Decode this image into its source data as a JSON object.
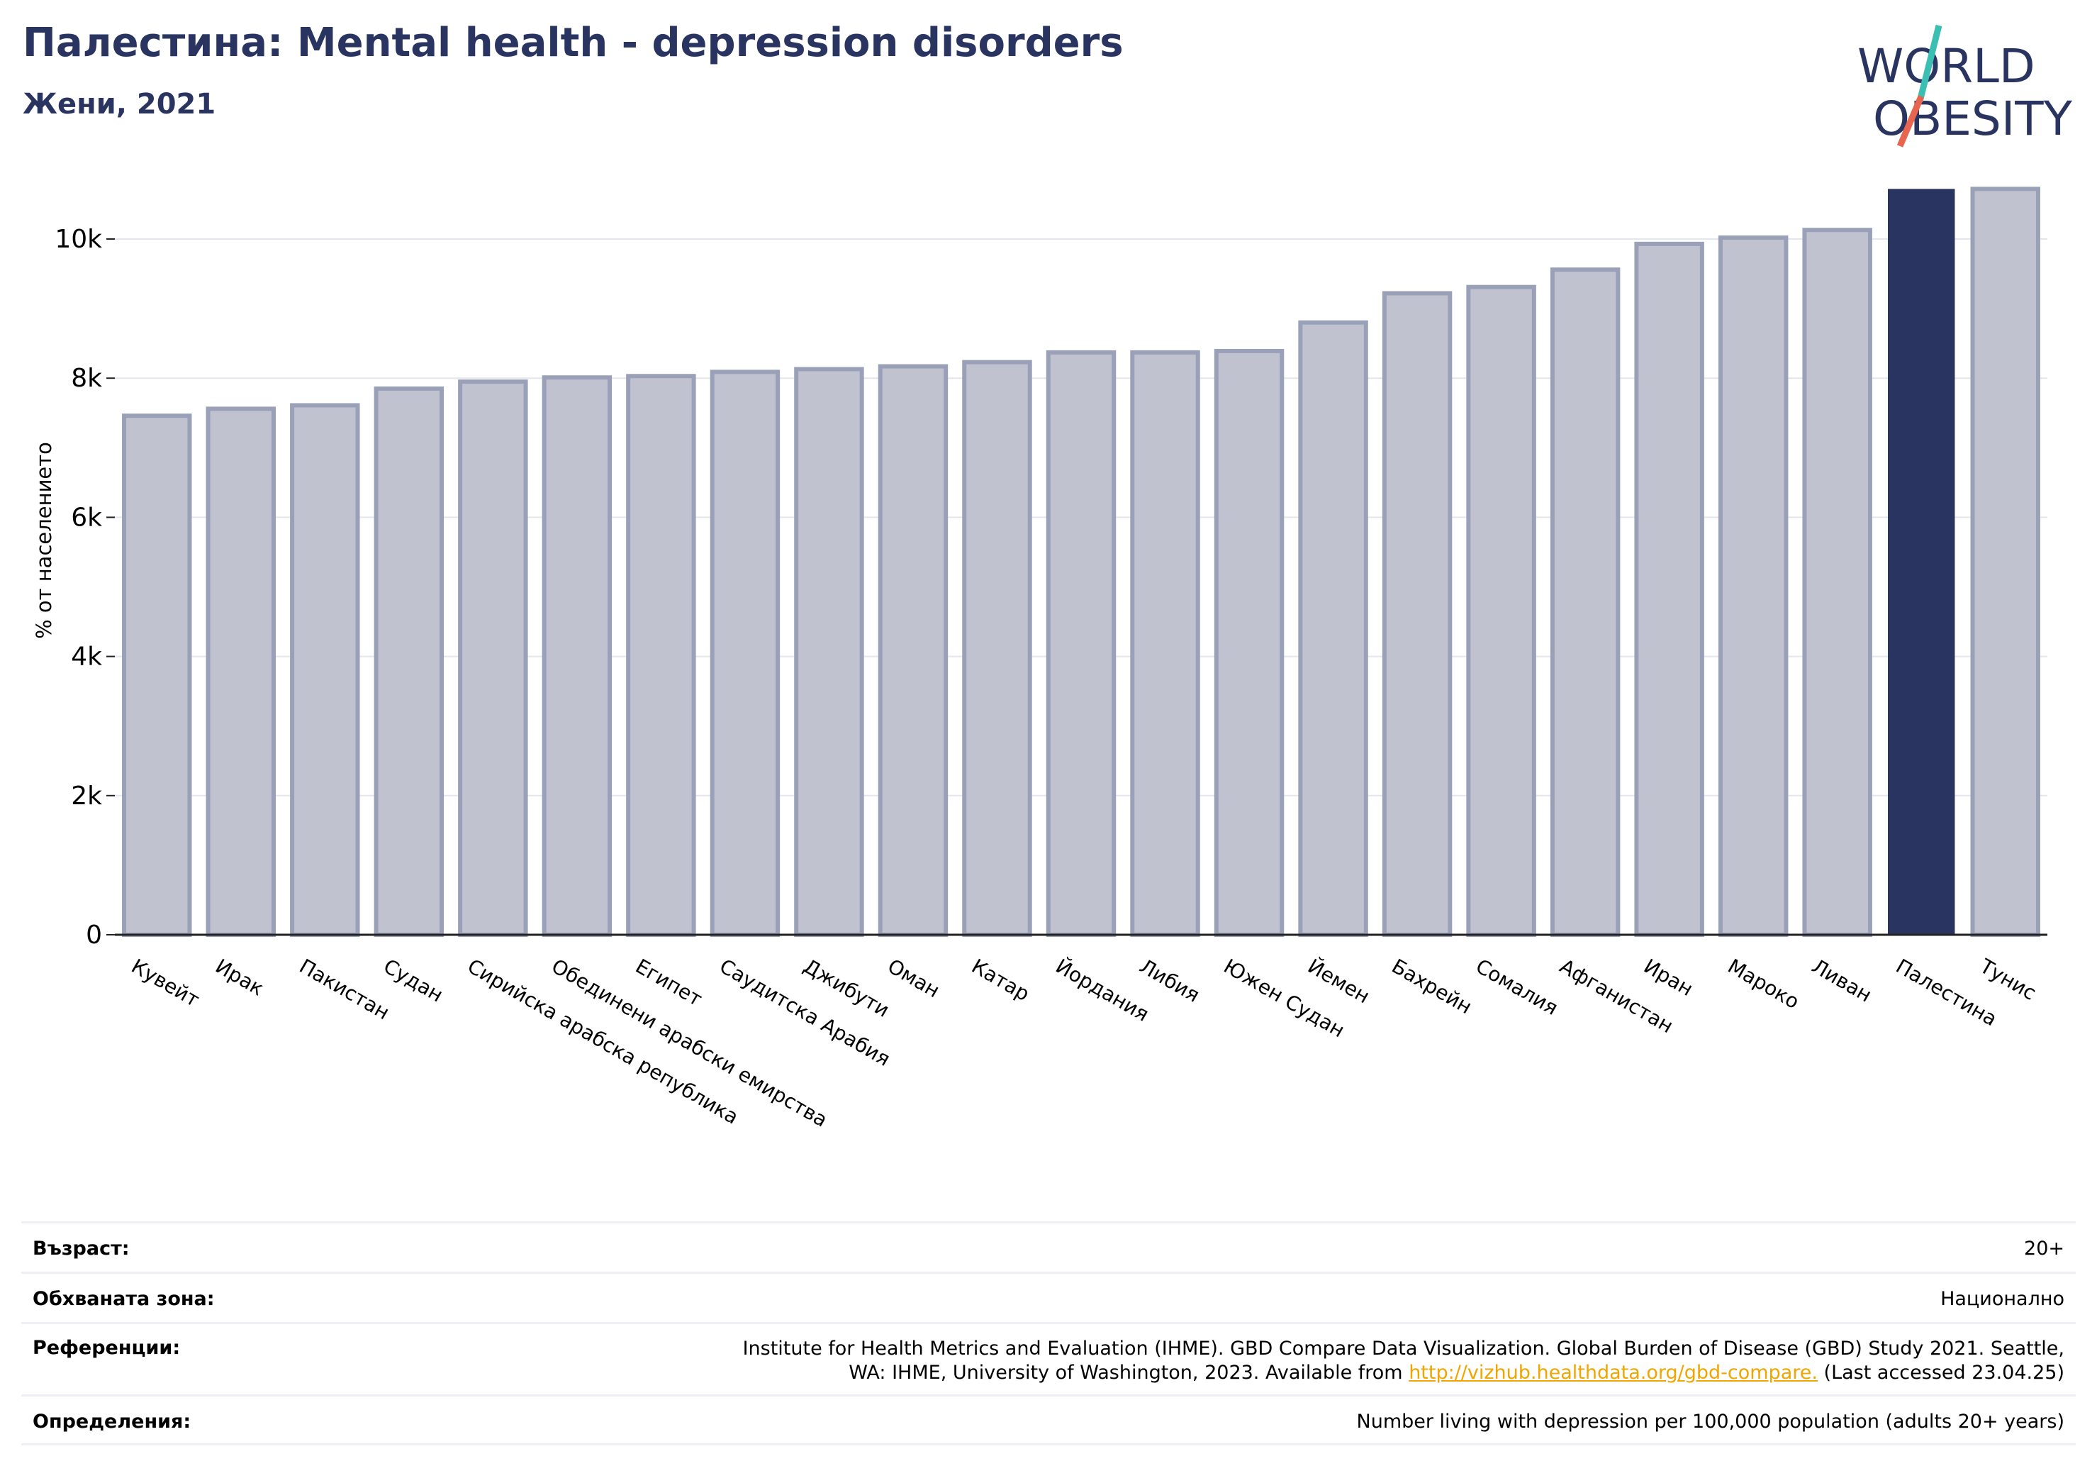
{
  "header": {
    "title": "Палестина: Mental health - depression disorders",
    "subtitle": "Жени, 2021"
  },
  "logo": {
    "line1": "WORLD",
    "line2": "OBESITY",
    "text_color": "#2a3460",
    "slash_colors": [
      "#3bbfb2",
      "#e8664f"
    ]
  },
  "chart_data": {
    "type": "bar",
    "categories": [
      "Кувейт",
      "Ирак",
      "Пакистан",
      "Судан",
      "Сирийска арабска република",
      "Обединени арабски емирства",
      "Египет",
      "Саудитска Арабия",
      "Джибути",
      "Оман",
      "Катар",
      "Йордания",
      "Либия",
      "Южен Судан",
      "Йемен",
      "Бахрейн",
      "Сомалия",
      "Афганистан",
      "Иран",
      "Мароко",
      "Ливан",
      "Палестина",
      "Тунис"
    ],
    "values": [
      7460,
      7560,
      7610,
      7850,
      7950,
      8010,
      8030,
      8090,
      8130,
      8170,
      8230,
      8370,
      8370,
      8390,
      8800,
      9220,
      9310,
      9560,
      9930,
      10020,
      10130,
      10710,
      10720
    ],
    "highlight": "Палестина",
    "ylabel": "% от населението",
    "xlabel": "",
    "ylim": [
      0,
      11000
    ],
    "yticks": [
      0,
      2000,
      4000,
      6000,
      8000,
      10000
    ],
    "ytick_labels": [
      "0",
      "2k",
      "4k",
      "6k",
      "8k",
      "10k"
    ],
    "grid": true,
    "colors": {
      "bar": "#c0c3cf",
      "bar_edge": "#9aa0b8",
      "highlight": "#2a3460"
    }
  },
  "info": {
    "age_label": "Възраст:",
    "age_value": "20+",
    "coverage_label": "Обхваната зона:",
    "coverage_value": "Национално",
    "references_label": "Референции:",
    "references_line1": "Institute for Health Metrics and Evaluation (IHME). GBD Compare Data Visualization. Global Burden of Disease (GBD) Study 2021. Seattle,",
    "references_line2_pre": "WA: IHME, University of Washington, 2023. Available from ",
    "references_link": "http://vizhub.healthdata.org/gbd-compare.",
    "references_line2_post": " (Last accessed 23.04.25)",
    "definitions_label": "Определения:",
    "definitions_value": "Number living with depression per 100,000 population (adults 20+ years)"
  }
}
